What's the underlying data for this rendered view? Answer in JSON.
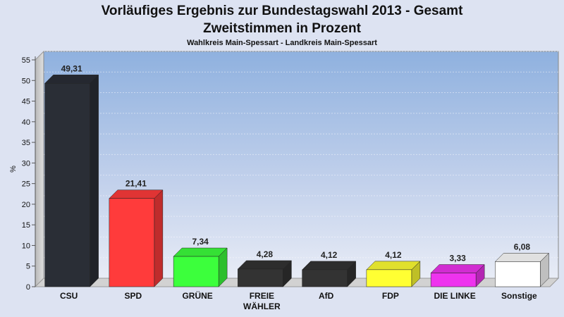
{
  "chart_data": {
    "type": "bar",
    "title": "Vorläufiges Ergebnis zur Bundestagswahl 2013 - Gesamt",
    "subtitle": "Zweitstimmen in Prozent",
    "subsubtitle": "Wahlkreis Main-Spessart - Landkreis Main-Spessart",
    "xlabel": "",
    "ylabel": "%",
    "ylim": [
      0,
      55
    ],
    "yticks": [
      0,
      5,
      10,
      15,
      20,
      25,
      30,
      35,
      40,
      45,
      50,
      55
    ],
    "grid": true,
    "categories": [
      "CSU",
      "SPD",
      "GRÜNE",
      "FREIE WÄHLER",
      "AfD",
      "FDP",
      "DIE LINKE",
      "Sonstige"
    ],
    "category_lines": [
      [
        "CSU"
      ],
      [
        "SPD"
      ],
      [
        "GRÜNE"
      ],
      [
        "FREIE",
        "WÄHLER"
      ],
      [
        "AfD"
      ],
      [
        "FDP"
      ],
      [
        "DIE LINKE"
      ],
      [
        "Sonstige"
      ]
    ],
    "values": [
      49.31,
      21.41,
      7.34,
      4.28,
      4.12,
      4.12,
      3.33,
      6.08
    ],
    "value_labels": [
      "49,31",
      "21,41",
      "7,34",
      "4,28",
      "4,12",
      "4,12",
      "3,33",
      "6,08"
    ],
    "colors": [
      "#2a2e36",
      "#ff3b3b",
      "#3cff3c",
      "#333333",
      "#333333",
      "#ffff33",
      "#ee33ee",
      "#ffffff"
    ]
  }
}
